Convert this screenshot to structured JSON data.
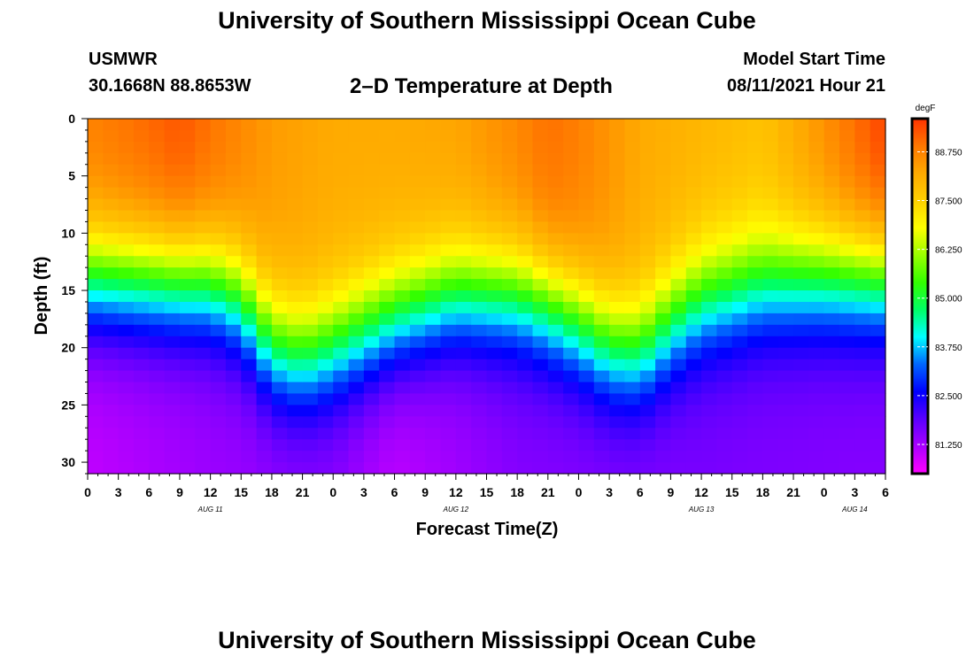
{
  "header": {
    "title": "University of Southern Mississippi Ocean Cube",
    "station_id": "USMWR",
    "station_coords": "30.1668N  88.8653W",
    "plot_title": "2–D Temperature at Depth",
    "model_start_label": "Model Start Time",
    "model_start_value": "08/11/2021 Hour 21"
  },
  "footer": {
    "title": "University of Southern Mississippi Ocean Cube"
  },
  "chart_data": {
    "type": "heatmap",
    "xlabel": "Forecast Time(Z)",
    "ylabel": "Depth (ft)",
    "x_range_hours": [
      0,
      78
    ],
    "x_tick_labels": [
      "0",
      "3",
      "6",
      "9",
      "12",
      "15",
      "18",
      "21",
      "0",
      "3",
      "6",
      "9",
      "12",
      "15",
      "18",
      "21",
      "0",
      "3",
      "6",
      "9",
      "12",
      "15",
      "18",
      "21",
      "0",
      "3",
      "6"
    ],
    "date_labels": [
      {
        "label": "AUG 11",
        "hour": 12
      },
      {
        "label": "AUG 12",
        "hour": 36
      },
      {
        "label": "AUG 13",
        "hour": 60
      },
      {
        "label": "AUG 14",
        "hour": 75
      }
    ],
    "ylim": [
      0,
      31
    ],
    "y_reversed": true,
    "y_ticks": [
      0,
      5,
      10,
      15,
      20,
      25,
      30
    ],
    "y_tick_labels": [
      "0",
      "5",
      "10",
      "15",
      "20",
      "25",
      "30"
    ],
    "colorbar": {
      "unit": "degF",
      "range": [
        80.5,
        89.6
      ],
      "ticks": [
        81.25,
        82.5,
        83.75,
        85.0,
        86.25,
        87.5,
        88.75
      ],
      "tick_labels": [
        "81.250",
        "82.500",
        "83.750",
        "85.000",
        "86.250",
        "87.500",
        "88.750"
      ],
      "colors": [
        "#ff00ff",
        "#aa00ff",
        "#5a00ff",
        "#0000ff",
        "#0066ff",
        "#00ffff",
        "#00ff66",
        "#33ff00",
        "#99ff00",
        "#ffff00",
        "#ffd000",
        "#ffaa00",
        "#ff7700",
        "#ff3300"
      ]
    },
    "surface_temperature_profile": [
      {
        "hour": 0,
        "degF": 88.8
      },
      {
        "hour": 6,
        "degF": 89.1
      },
      {
        "hour": 9,
        "degF": 89.3
      },
      {
        "hour": 12,
        "degF": 89.0
      },
      {
        "hour": 18,
        "degF": 88.4
      },
      {
        "hour": 24,
        "degF": 88.2
      },
      {
        "hour": 30,
        "degF": 88.2
      },
      {
        "hour": 36,
        "degF": 88.3
      },
      {
        "hour": 42,
        "degF": 88.7
      },
      {
        "hour": 45,
        "degF": 89.0
      },
      {
        "hour": 48,
        "degF": 88.8
      },
      {
        "hour": 54,
        "degF": 88.2
      },
      {
        "hour": 60,
        "degF": 88.0
      },
      {
        "hour": 66,
        "degF": 87.8
      },
      {
        "hour": 72,
        "degF": 88.6
      },
      {
        "hour": 78,
        "degF": 89.5
      }
    ],
    "bottom_temperature_profile": [
      {
        "hour": 0,
        "degF": 81.0
      },
      {
        "hour": 12,
        "degF": 81.3
      },
      {
        "hour": 24,
        "degF": 81.4
      },
      {
        "hour": 30,
        "degF": 81.0
      },
      {
        "hour": 42,
        "degF": 81.5
      },
      {
        "hour": 54,
        "degF": 81.5
      },
      {
        "hour": 60,
        "degF": 81.6
      },
      {
        "hour": 78,
        "degF": 81.5
      }
    ],
    "thermocline_depth_ft": [
      {
        "hour": 0,
        "depth": 10.5
      },
      {
        "hour": 12,
        "depth": 11.0
      },
      {
        "hour": 15,
        "depth": 12.5
      },
      {
        "hour": 18,
        "depth": 16.5
      },
      {
        "hour": 21,
        "depth": 17.5
      },
      {
        "hour": 24,
        "depth": 16.5
      },
      {
        "hour": 30,
        "depth": 14.0
      },
      {
        "hour": 36,
        "depth": 12.0
      },
      {
        "hour": 42,
        "depth": 12.0
      },
      {
        "hour": 45,
        "depth": 13.0
      },
      {
        "hour": 48,
        "depth": 14.5
      },
      {
        "hour": 51,
        "depth": 16.5
      },
      {
        "hour": 54,
        "depth": 17.0
      },
      {
        "hour": 57,
        "depth": 14.5
      },
      {
        "hour": 60,
        "depth": 12.5
      },
      {
        "hour": 66,
        "depth": 11.0
      },
      {
        "hour": 72,
        "depth": 10.5
      },
      {
        "hour": 78,
        "depth": 10.5
      }
    ]
  }
}
